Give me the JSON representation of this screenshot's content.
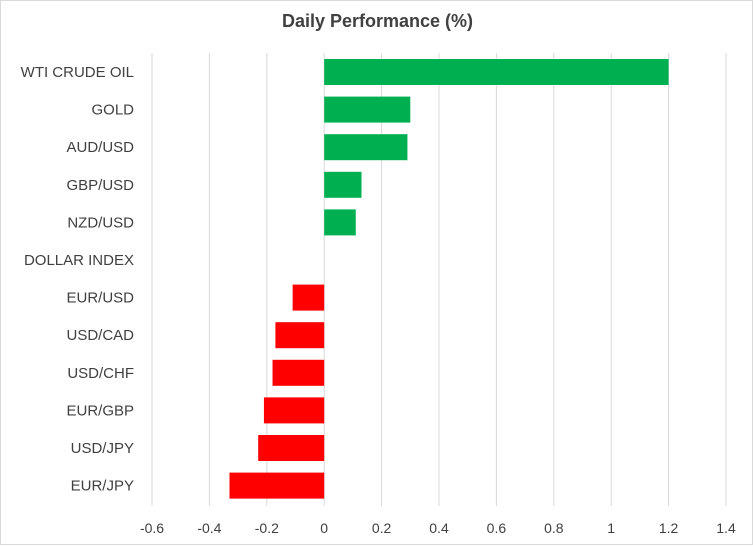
{
  "chart_data": {
    "type": "bar",
    "orientation": "horizontal",
    "title": "Daily Performance  (%)",
    "categories": [
      "WTI CRUDE OIL",
      "GOLD",
      "AUD/USD",
      "GBP/USD",
      "NZD/USD",
      "DOLLAR INDEX",
      "EUR/USD",
      "USD/CAD",
      "USD/CHF",
      "EUR/GBP",
      "USD/JPY",
      "EUR/JPY"
    ],
    "values": [
      1.2,
      0.3,
      0.29,
      0.13,
      0.11,
      0.0,
      -0.11,
      -0.17,
      -0.18,
      -0.21,
      -0.23,
      -0.33
    ],
    "xlim": [
      -0.6,
      1.4
    ],
    "xticks": [
      -0.6,
      -0.4,
      -0.2,
      0,
      0.2,
      0.4,
      0.6,
      0.8,
      1,
      1.2,
      1.4
    ],
    "xtick_labels": [
      "-0.6",
      "-0.4",
      "-0.2",
      "0",
      "0.2",
      "0.4",
      "0.6",
      "0.8",
      "1",
      "1.2",
      "1.4"
    ],
    "grid": "vertical",
    "colors": {
      "positive": "#00b050",
      "negative": "#ff0000",
      "gridline": "#d9d9d9",
      "text": "#404040"
    }
  }
}
